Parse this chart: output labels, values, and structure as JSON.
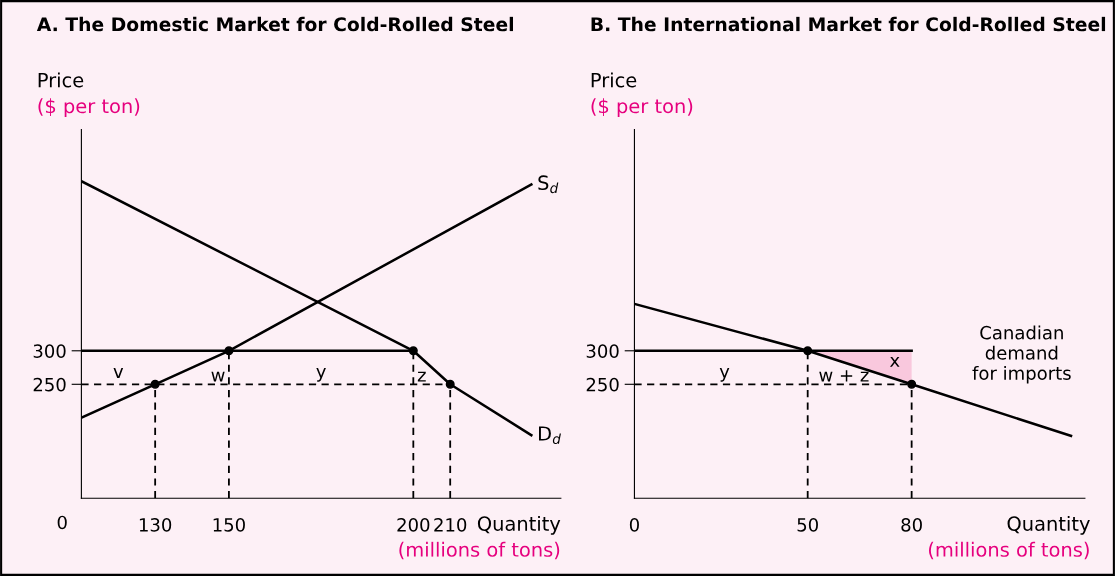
{
  "chart_data": [
    {
      "type": "line",
      "title": "A. The Domestic Market for Cold-Rolled Steel",
      "xlabel": "Quantity\n(millions of tons)",
      "ylabel": "Price\n($ per ton)",
      "xlim": [
        110,
        240
      ],
      "ylim": [
        80,
        630
      ],
      "xticks": [
        130,
        150,
        200,
        210
      ],
      "yticks": [
        250,
        300
      ],
      "series": [
        {
          "name": "S$_{d}$",
          "color": "#000000",
          "x": [
            110,
            130,
            150,
            232
          ],
          "values": [
            200,
            250,
            300,
            548
          ]
        },
        {
          "name": "D$_{d}$",
          "color": "#000000",
          "x": [
            110,
            200,
            210,
            232
          ],
          "values": [
            553,
            300,
            250,
            174
          ]
        },
        {
          "color": "#000000",
          "x": [
            110,
            200
          ],
          "values": [
            300,
            300
          ]
        },
        {
          "color": "#000000",
          "line_style": "dashed",
          "x": [
            110,
            210
          ],
          "values": [
            250,
            250
          ]
        },
        {
          "color": "#000000",
          "line_style": "dashed",
          "x": [
            130,
            130
          ],
          "values": [
            80,
            250
          ]
        },
        {
          "color": "#000000",
          "line_style": "dashed",
          "x": [
            150,
            150
          ],
          "values": [
            80,
            300
          ]
        },
        {
          "color": "#000000",
          "line_style": "dashed",
          "x": [
            200,
            200
          ],
          "values": [
            80,
            300
          ]
        },
        {
          "color": "#000000",
          "line_style": "dashed",
          "x": [
            210,
            210
          ],
          "values": [
            80,
            250
          ]
        },
        {
          "type": "scatter",
          "color": "#000000",
          "marker": "circle",
          "x": [
            130,
            150,
            200,
            210
          ],
          "values": [
            250,
            300,
            300,
            250
          ]
        }
      ],
      "annotations": [
        "0",
        "v",
        "w",
        "y",
        "z"
      ]
    },
    {
      "type": "line",
      "title": "B. The International Market for Cold-Rolled Steel",
      "xlabel": "Quantity\n(millions of tons)",
      "ylabel": "Price\n($ per ton)",
      "xlim": [
        0,
        130
      ],
      "ylim": [
        80,
        630
      ],
      "xticks": [
        0,
        50,
        80
      ],
      "yticks": [
        250,
        300
      ],
      "series": [
        {
          "type": "area",
          "color": "#f9c8dd",
          "x": [
            50,
            80,
            80
          ],
          "values": [
            300,
            300,
            250
          ]
        },
        {
          "color": "#000000",
          "x": [
            0,
            50,
            80,
            126
          ],
          "values": [
            370,
            300,
            250,
            173
          ]
        },
        {
          "color": "#000000",
          "x": [
            0,
            80
          ],
          "values": [
            300,
            300
          ]
        },
        {
          "color": "#000000",
          "line_style": "dashed",
          "x": [
            0,
            80
          ],
          "values": [
            250,
            250
          ]
        },
        {
          "color": "#000000",
          "line_style": "dashed",
          "x": [
            50,
            50
          ],
          "values": [
            80,
            300
          ]
        },
        {
          "color": "#000000",
          "line_style": "dashed",
          "x": [
            80,
            80
          ],
          "values": [
            80,
            250
          ]
        },
        {
          "type": "scatter",
          "color": "#000000",
          "marker": "circle",
          "x": [
            50,
            80
          ],
          "values": [
            300,
            250
          ]
        }
      ],
      "annotations": [
        "y",
        "w + z",
        "x",
        "Canadian\ndemand\nfor imports"
      ]
    }
  ]
}
